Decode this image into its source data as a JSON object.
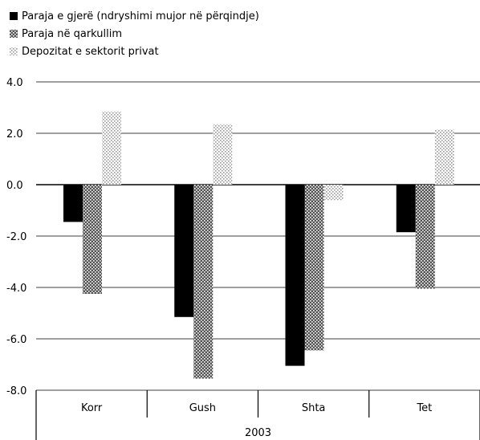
{
  "chart_data": {
    "type": "bar",
    "categories": [
      "Korr",
      "Gush",
      "Shta",
      "Tet"
    ],
    "group_label": "2003",
    "ylim": [
      -8.0,
      4.0
    ],
    "yticks": [
      "4.0",
      "2.0",
      "0.0",
      "-2.0",
      "-4.0",
      "-6.0",
      "-8.0"
    ],
    "ytick_values": [
      4,
      2,
      0,
      -2,
      -4,
      -6,
      -8
    ],
    "legend_position": "top-left",
    "series": [
      {
        "name": "Paraja e gjerë (ndryshimi mujor në përqindje)",
        "values": [
          -1.45,
          -5.15,
          -7.05,
          -1.85
        ],
        "color": "#000000",
        "pattern": "solid"
      },
      {
        "name": "Paraja në qarkullim",
        "values": [
          -4.25,
          -7.55,
          -6.45,
          -4.05
        ],
        "color": "#555555",
        "pattern": "dense-dots"
      },
      {
        "name": "Depozitat e sektorit privat",
        "values": [
          2.85,
          2.35,
          -0.6,
          2.15
        ],
        "color": "#bbbbbb",
        "pattern": "light-dots"
      }
    ]
  }
}
